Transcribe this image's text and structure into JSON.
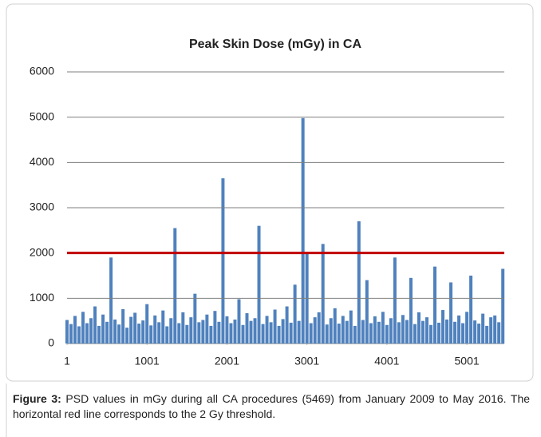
{
  "chart_data": {
    "type": "bar",
    "title": "Peak Skin Dose (mGy) in CA",
    "x": [
      1,
      51,
      101,
      151,
      201,
      251,
      301,
      351,
      401,
      451,
      501,
      551,
      601,
      651,
      701,
      751,
      801,
      851,
      901,
      951,
      1001,
      1051,
      1101,
      1151,
      1201,
      1251,
      1301,
      1351,
      1401,
      1451,
      1501,
      1551,
      1601,
      1651,
      1701,
      1751,
      1801,
      1851,
      1901,
      1951,
      2001,
      2051,
      2101,
      2151,
      2201,
      2251,
      2301,
      2351,
      2401,
      2451,
      2501,
      2551,
      2601,
      2651,
      2701,
      2751,
      2801,
      2851,
      2901,
      2951,
      3001,
      3051,
      3101,
      3151,
      3201,
      3251,
      3301,
      3351,
      3401,
      3451,
      3501,
      3551,
      3601,
      3651,
      3701,
      3751,
      3801,
      3851,
      3901,
      3951,
      4001,
      4051,
      4101,
      4151,
      4201,
      4251,
      4301,
      4351,
      4401,
      4451,
      4501,
      4551,
      4601,
      4651,
      4701,
      4751,
      4801,
      4851,
      4901,
      4951,
      5001,
      5051,
      5101,
      5151,
      5201,
      5251,
      5301,
      5351,
      5401,
      5451
    ],
    "values": [
      520,
      430,
      610,
      380,
      700,
      450,
      560,
      820,
      390,
      640,
      480,
      1900,
      530,
      420,
      760,
      350,
      590,
      680,
      440,
      510,
      870,
      400,
      620,
      470,
      730,
      380,
      560,
      2550,
      450,
      690,
      410,
      580,
      1100,
      470,
      520,
      640,
      390,
      720,
      480,
      3650,
      600,
      450,
      530,
      980,
      410,
      670,
      500,
      560,
      2600,
      430,
      610,
      470,
      750,
      390,
      540,
      820,
      460,
      1300,
      500,
      4980,
      2000,
      450,
      580,
      690,
      2200,
      420,
      560,
      780,
      440,
      610,
      500,
      730,
      390,
      2700,
      520,
      1400,
      450,
      600,
      480,
      700,
      410,
      560,
      1900,
      470,
      630,
      520,
      1450,
      430,
      690,
      500,
      580,
      410,
      1700,
      460,
      740,
      530,
      1350,
      480,
      620,
      450,
      700,
      1500,
      510,
      440,
      660,
      390,
      580,
      620,
      470,
      1650
    ],
    "color": "#4f81bd",
    "threshold": 2000,
    "threshold_color": "#c00000",
    "xlim": [
      1,
      5469
    ],
    "xticks": [
      1,
      1001,
      2001,
      3001,
      4001,
      5001
    ],
    "ylim": [
      0,
      6000
    ],
    "yticks": [
      0,
      1000,
      2000,
      3000,
      4000,
      5000,
      6000
    ],
    "grid": true
  },
  "caption": {
    "label": "Figure 3:",
    "text": "PSD values in mGy during all CA procedures (5469) from January 2009 to May 2016. The horizontal red line corresponds to the 2 Gy threshold."
  }
}
